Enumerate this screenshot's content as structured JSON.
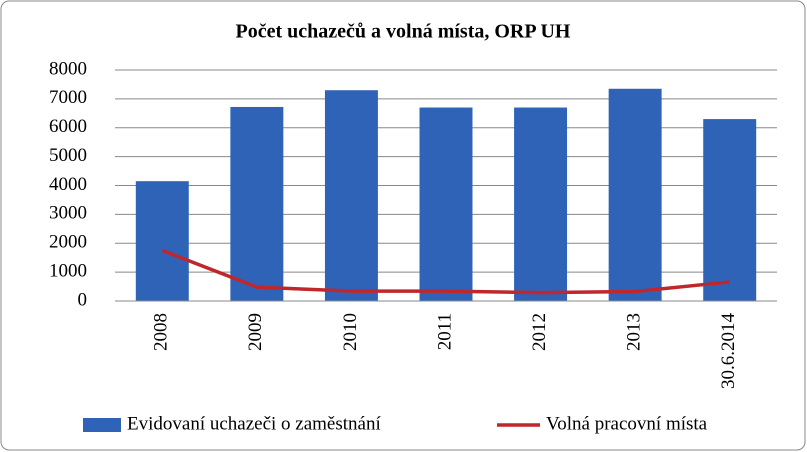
{
  "chart_data": {
    "type": "combo",
    "title": "Počet uchazečů a volná místa, ORP UH",
    "categories": [
      "2008",
      "2009",
      "2010",
      "2011",
      "2012",
      "2013",
      "30.6.2014"
    ],
    "series": [
      {
        "name": "Evidovaní uchazeči o zaměstnání",
        "type": "bar",
        "color": "#2e63b8",
        "values": [
          4150,
          6720,
          7300,
          6700,
          6700,
          7350,
          6300
        ]
      },
      {
        "name": "Volná pracovní místa",
        "type": "line",
        "color": "#c0272d",
        "values": [
          1750,
          480,
          340,
          340,
          290,
          330,
          660
        ]
      }
    ],
    "ylim": [
      0,
      8000
    ],
    "yticks": [
      0,
      1000,
      2000,
      3000,
      4000,
      5000,
      6000,
      7000,
      8000
    ],
    "grid": true,
    "legend": "bottom"
  }
}
